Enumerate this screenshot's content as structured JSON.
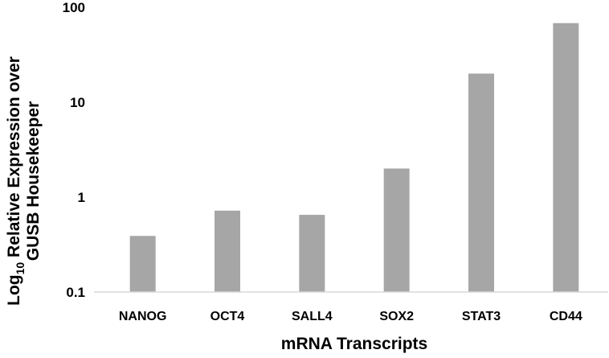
{
  "chart_data": {
    "type": "bar",
    "y_scale": "log",
    "categories": [
      "NANOG",
      "OCT4",
      "SALL4",
      "SOX2",
      "STAT3",
      "CD44"
    ],
    "series": [
      {
        "values": [
          0.39,
          0.72,
          0.65,
          2.0,
          20.0,
          68.0
        ],
        "color": "#a6a6a6"
      }
    ],
    "ylim": [
      0.1,
      100
    ],
    "yticks": [
      "0.1",
      "1",
      "10",
      "100"
    ],
    "xlabel": "mRNA Transcripts",
    "ylabel": {
      "prefix": "Log",
      "subscript": "10",
      "line1_rest": " Relative Expression over",
      "line2": "GUSB Housekeeper"
    },
    "grid": false,
    "axis_color": "#d9d9d9"
  }
}
